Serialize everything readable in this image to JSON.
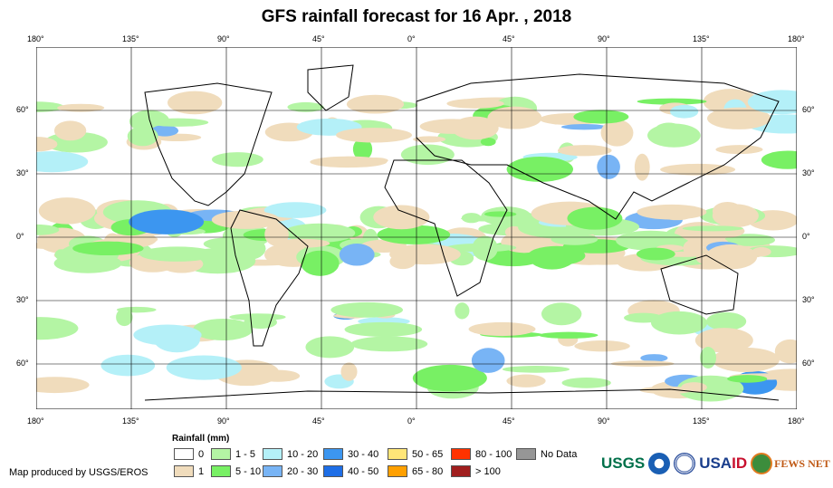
{
  "title": "GFS rainfall forecast for 16 Apr. , 2018",
  "lon_ticks": [
    "180°",
    "135°",
    "90°",
    "45°",
    "0°",
    "45°",
    "90°",
    "135°",
    "180°"
  ],
  "lat_ticks": [
    "60°",
    "30°",
    "0°",
    "30°",
    "60°"
  ],
  "legend": {
    "title": "Rainfall (mm)",
    "items": [
      {
        "label": "0",
        "color": "#ffffff"
      },
      {
        "label": "1",
        "color": "#f0dcbc"
      },
      {
        "label": "1 - 5",
        "color": "#b4f5a4"
      },
      {
        "label": "5 - 10",
        "color": "#78f064"
      },
      {
        "label": "10 - 20",
        "color": "#b4f0f8"
      },
      {
        "label": "20 - 30",
        "color": "#78b4f5"
      },
      {
        "label": "30 - 40",
        "color": "#3c96f0"
      },
      {
        "label": "40 - 50",
        "color": "#1e6ee6"
      },
      {
        "label": "50 - 65",
        "color": "#ffe678"
      },
      {
        "label": "65 - 80",
        "color": "#ffa000"
      },
      {
        "label": "80 - 100",
        "color": "#ff3200"
      },
      {
        "label": "> 100",
        "color": "#a01e1e"
      },
      {
        "label": "No Data",
        "color": "#969696"
      }
    ]
  },
  "credit": "Map produced by USGS/EROS",
  "logos": {
    "usgs": "USGS",
    "usaid_a": "USA",
    "usaid_b": "ID",
    "fews": "FEWS NET"
  }
}
